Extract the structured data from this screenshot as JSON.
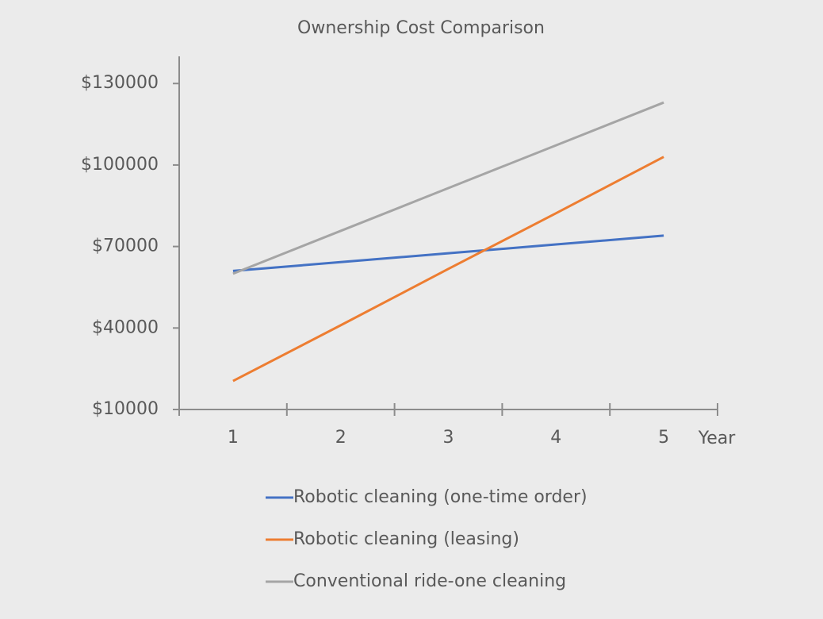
{
  "chart_data": {
    "type": "line",
    "title": "Ownership Cost Comparison",
    "x_label": "Year",
    "categories": [
      "1",
      "2",
      "3",
      "4",
      "5"
    ],
    "series": [
      {
        "name": "Robotic cleaning (one-time order)",
        "color": "#4472c4",
        "values": [
          61000,
          64250,
          67500,
          70750,
          74000
        ]
      },
      {
        "name": "Robotic cleaning (leasing)",
        "color": "#ed7d31",
        "values": [
          20500,
          41000,
          61750,
          82250,
          103000
        ]
      },
      {
        "name": "Conventional ride-one cleaning",
        "color": "#a5a5a5",
        "values": [
          60000,
          75750,
          91500,
          107250,
          123000
        ]
      }
    ],
    "ylim": [
      10000,
      140000
    ],
    "yticks": [
      {
        "value": 10000,
        "label": "$10000"
      },
      {
        "value": 40000,
        "label": "$40000"
      },
      {
        "value": 70000,
        "label": "$70000"
      },
      {
        "value": 100000,
        "label": "$100000"
      },
      {
        "value": 130000,
        "label": "$130000"
      }
    ],
    "grid": false,
    "legend": "bottom"
  }
}
